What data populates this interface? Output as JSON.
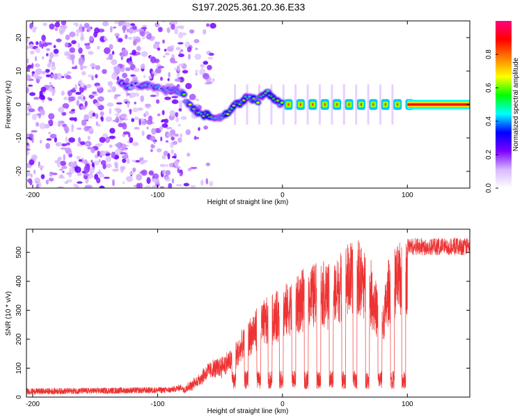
{
  "title": "S197.2025.361.20.36.E33",
  "chart_data": [
    {
      "type": "heatmap",
      "name": "spectrogram",
      "xlabel": "Height of straight line (km)",
      "ylabel": "Frequency (Hz)",
      "xlim": [
        -205,
        150
      ],
      "ylim": [
        -25,
        25
      ],
      "xticks": [
        -200,
        -100,
        0,
        100
      ],
      "yticks": [
        -20,
        -10,
        0,
        10,
        20
      ],
      "colorbar": {
        "label": "Normalized spectral amplitude",
        "range": [
          0,
          1
        ],
        "ticks": [
          "0.0",
          "0.2",
          "0.4",
          "0.6",
          "0.8"
        ],
        "tick_values": [
          0,
          0.2,
          0.4,
          0.6,
          0.8
        ],
        "colors": [
          "#ffffff",
          "#d8b8ff",
          "#7a00ff",
          "#0000ff",
          "#00ffff",
          "#00ff00",
          "#ffff00",
          "#ff8000",
          "#ff0000",
          "#ff0080"
        ]
      },
      "noise_region_km": [
        -205,
        -80
      ],
      "ridge": [
        {
          "x": -130,
          "f": 6.5
        },
        {
          "x": -120,
          "f": 5.5
        },
        {
          "x": -110,
          "f": 6.0
        },
        {
          "x": -100,
          "f": 5.0
        },
        {
          "x": -90,
          "f": 4.5
        },
        {
          "x": -80,
          "f": 3.0
        },
        {
          "x": -72,
          "f": -1.0
        },
        {
          "x": -65,
          "f": -3.0
        },
        {
          "x": -58,
          "f": -3.5
        },
        {
          "x": -50,
          "f": -4.5
        },
        {
          "x": -42,
          "f": -1.5
        },
        {
          "x": -35,
          "f": 0.5
        },
        {
          "x": -28,
          "f": 2.5
        },
        {
          "x": -20,
          "f": 1.0
        },
        {
          "x": -12,
          "f": 4.0
        },
        {
          "x": -8,
          "f": 1.5
        },
        {
          "x": 0,
          "f": 0
        },
        {
          "x": 150,
          "f": 0
        }
      ]
    },
    {
      "type": "line",
      "name": "snr",
      "xlabel": "Height of straight line (km)",
      "ylabel": "SNR (10 * v/v)",
      "xlim": [
        -205,
        150
      ],
      "ylim": [
        0,
        580
      ],
      "xticks": [
        -200,
        -100,
        0,
        100
      ],
      "yticks": [
        0,
        100,
        200,
        300,
        400,
        500
      ],
      "color": "#ee3333",
      "envelope": [
        {
          "x": -205,
          "y": 15
        },
        {
          "x": -90,
          "y": 20
        },
        {
          "x": -80,
          "y": 30
        },
        {
          "x": -70,
          "y": 60
        },
        {
          "x": -60,
          "y": 110
        },
        {
          "x": -50,
          "y": 130
        },
        {
          "x": -40,
          "y": 160
        },
        {
          "x": -30,
          "y": 230
        },
        {
          "x": -20,
          "y": 300
        },
        {
          "x": -10,
          "y": 330
        },
        {
          "x": 0,
          "y": 360
        },
        {
          "x": 10,
          "y": 390
        },
        {
          "x": 20,
          "y": 430
        },
        {
          "x": 30,
          "y": 450
        },
        {
          "x": 40,
          "y": 430
        },
        {
          "x": 50,
          "y": 500
        },
        {
          "x": 60,
          "y": 520
        },
        {
          "x": 70,
          "y": 460
        },
        {
          "x": 80,
          "y": 300
        },
        {
          "x": 85,
          "y": 460
        },
        {
          "x": 90,
          "y": 490
        },
        {
          "x": 100,
          "y": 520
        },
        {
          "x": 150,
          "y": 520
        }
      ],
      "dropouts_km": [
        -39,
        -29,
        -19,
        -10,
        -1,
        9,
        19,
        29,
        39,
        49,
        58,
        68,
        78,
        88,
        97
      ],
      "dropout_floor": 70
    }
  ]
}
